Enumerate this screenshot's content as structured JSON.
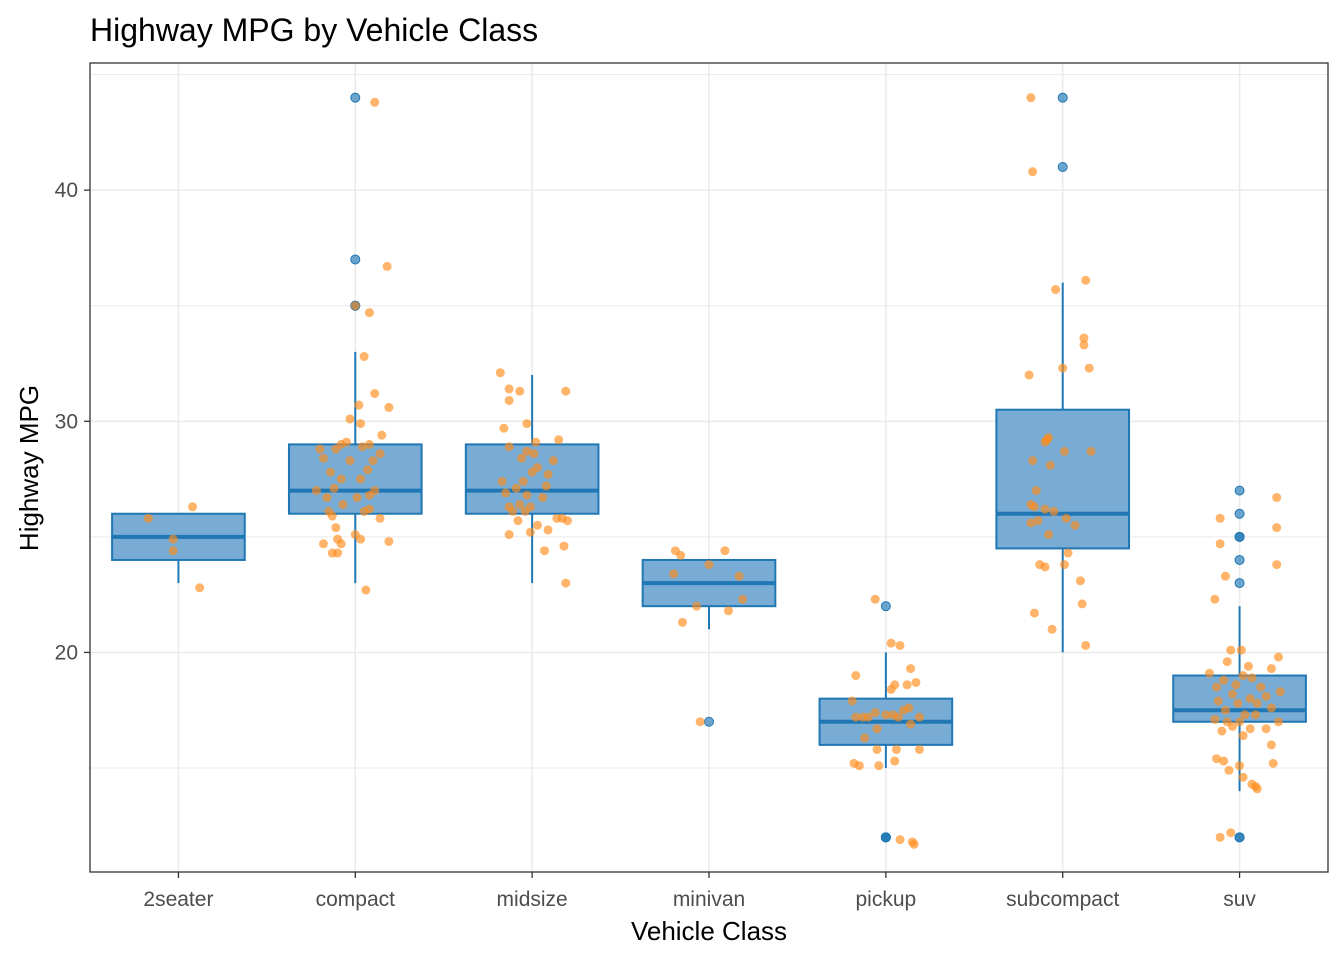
{
  "chart_data": {
    "type": "box",
    "title": "Highway MPG by Vehicle Class",
    "xlabel": "Vehicle Class",
    "ylabel": "Highway MPG",
    "ylim": [
      10.5,
      45.5
    ],
    "yticks": [
      20,
      30,
      40
    ],
    "grid": true,
    "colors": {
      "box_fill": "#78acd5",
      "box_line": "#1f77b4",
      "outlier": "#1f77b4",
      "jitter": "#ff8c1a",
      "grid": "#ebebeb"
    },
    "categories": [
      "2seater",
      "compact",
      "midsize",
      "minivan",
      "pickup",
      "subcompact",
      "suv"
    ],
    "boxes": [
      {
        "label": "2seater",
        "min": 23,
        "q1": 24,
        "median": 25,
        "q3": 26,
        "max": 26,
        "outliers": []
      },
      {
        "label": "compact",
        "min": 23,
        "q1": 26,
        "median": 27,
        "q3": 29,
        "max": 33,
        "outliers": [
          35,
          37,
          35,
          44
        ]
      },
      {
        "label": "midsize",
        "min": 23,
        "q1": 26,
        "median": 27,
        "q3": 29,
        "max": 32,
        "outliers": []
      },
      {
        "label": "minivan",
        "min": 21,
        "q1": 22,
        "median": 23,
        "q3": 24,
        "max": 24,
        "outliers": [
          17
        ]
      },
      {
        "label": "pickup",
        "min": 15,
        "q1": 16,
        "median": 17,
        "q3": 18,
        "max": 20,
        "outliers": [
          12,
          12,
          12,
          22
        ]
      },
      {
        "label": "subcompact",
        "min": 20,
        "q1": 24.5,
        "median": 26,
        "q3": 30.5,
        "max": 36,
        "outliers": [
          44,
          41
        ]
      },
      {
        "label": "suv",
        "min": 14,
        "q1": 17,
        "median": 17.5,
        "q3": 19,
        "max": 22,
        "outliers": [
          12,
          12,
          27,
          25,
          25,
          26,
          24,
          23
        ]
      }
    ],
    "jitter": [
      {
        "label": "2seater",
        "points": [
          [
            -0.17,
            25.8
          ],
          [
            0.08,
            26.3
          ],
          [
            -0.03,
            24.9
          ],
          [
            -0.03,
            24.4
          ],
          [
            0.12,
            22.8
          ]
        ]
      },
      {
        "label": "compact",
        "points": [
          [
            0.11,
            43.8
          ],
          [
            0.0,
            35.0
          ],
          [
            0.08,
            34.7
          ],
          [
            0.18,
            36.7
          ],
          [
            0.05,
            32.8
          ],
          [
            0.19,
            30.6
          ],
          [
            0.11,
            31.2
          ],
          [
            0.02,
            30.7
          ],
          [
            -0.03,
            30.1
          ],
          [
            0.03,
            29.9
          ],
          [
            0.15,
            29.4
          ],
          [
            -0.05,
            29.1
          ],
          [
            0.08,
            29.0
          ],
          [
            -0.2,
            28.8
          ],
          [
            -0.11,
            28.8
          ],
          [
            -0.08,
            29.0
          ],
          [
            0.04,
            28.9
          ],
          [
            0.14,
            28.6
          ],
          [
            -0.18,
            28.4
          ],
          [
            0.1,
            28.3
          ],
          [
            -0.03,
            28.3
          ],
          [
            0.07,
            27.9
          ],
          [
            -0.14,
            27.8
          ],
          [
            -0.08,
            27.5
          ],
          [
            0.03,
            27.5
          ],
          [
            -0.12,
            27.1
          ],
          [
            0.11,
            27.0
          ],
          [
            -0.22,
            27.0
          ],
          [
            0.08,
            26.8
          ],
          [
            -0.16,
            26.7
          ],
          [
            0.01,
            26.7
          ],
          [
            -0.07,
            26.4
          ],
          [
            0.08,
            26.2
          ],
          [
            -0.15,
            26.1
          ],
          [
            0.05,
            26.1
          ],
          [
            -0.13,
            25.9
          ],
          [
            0.14,
            25.8
          ],
          [
            -0.11,
            25.4
          ],
          [
            0.0,
            25.1
          ],
          [
            -0.1,
            24.9
          ],
          [
            0.03,
            24.9
          ],
          [
            0.19,
            24.8
          ],
          [
            -0.18,
            24.7
          ],
          [
            -0.08,
            24.7
          ],
          [
            -0.13,
            24.3
          ],
          [
            -0.1,
            24.3
          ],
          [
            0.06,
            22.7
          ]
        ]
      },
      {
        "label": "midsize",
        "points": [
          [
            -0.18,
            32.1
          ],
          [
            -0.13,
            31.4
          ],
          [
            -0.07,
            31.3
          ],
          [
            -0.13,
            30.9
          ],
          [
            0.19,
            31.3
          ],
          [
            -0.03,
            29.9
          ],
          [
            -0.16,
            29.7
          ],
          [
            0.15,
            29.2
          ],
          [
            0.02,
            29.1
          ],
          [
            -0.13,
            28.9
          ],
          [
            -0.03,
            28.7
          ],
          [
            0.01,
            28.6
          ],
          [
            -0.06,
            28.4
          ],
          [
            0.12,
            28.3
          ],
          [
            0.03,
            28.0
          ],
          [
            0.09,
            27.7
          ],
          [
            0.0,
            27.8
          ],
          [
            -0.17,
            27.4
          ],
          [
            -0.05,
            27.4
          ],
          [
            0.08,
            27.2
          ],
          [
            -0.09,
            27.1
          ],
          [
            -0.15,
            26.9
          ],
          [
            -0.03,
            26.8
          ],
          [
            0.06,
            26.7
          ],
          [
            -0.07,
            26.4
          ],
          [
            -0.13,
            26.3
          ],
          [
            -0.01,
            26.3
          ],
          [
            -0.11,
            26.1
          ],
          [
            -0.04,
            26.1
          ],
          [
            0.14,
            25.8
          ],
          [
            -0.08,
            25.7
          ],
          [
            0.17,
            25.8
          ],
          [
            0.2,
            25.7
          ],
          [
            0.03,
            25.5
          ],
          [
            -0.01,
            25.2
          ],
          [
            0.09,
            25.3
          ],
          [
            -0.13,
            25.1
          ],
          [
            0.18,
            24.6
          ],
          [
            0.07,
            24.4
          ],
          [
            0.19,
            23.0
          ]
        ]
      },
      {
        "label": "minivan",
        "points": [
          [
            -0.19,
            24.4
          ],
          [
            -0.16,
            24.2
          ],
          [
            0.09,
            24.4
          ],
          [
            -0.2,
            23.4
          ],
          [
            0.0,
            23.8
          ],
          [
            0.17,
            23.3
          ],
          [
            0.19,
            22.3
          ],
          [
            -0.07,
            22.0
          ],
          [
            0.11,
            21.8
          ],
          [
            -0.15,
            21.3
          ],
          [
            -0.05,
            17.0
          ]
        ]
      },
      {
        "label": "pickup",
        "points": [
          [
            -0.06,
            22.3
          ],
          [
            0.03,
            20.4
          ],
          [
            0.08,
            20.3
          ],
          [
            -0.17,
            19.0
          ],
          [
            0.14,
            19.3
          ],
          [
            0.05,
            18.6
          ],
          [
            0.12,
            18.6
          ],
          [
            0.17,
            18.7
          ],
          [
            0.03,
            18.4
          ],
          [
            -0.19,
            17.9
          ],
          [
            0.13,
            17.6
          ],
          [
            0.1,
            17.5
          ],
          [
            -0.06,
            17.4
          ],
          [
            -0.1,
            17.2
          ],
          [
            0.0,
            17.3
          ],
          [
            0.04,
            17.3
          ],
          [
            -0.17,
            17.2
          ],
          [
            -0.13,
            17.2
          ],
          [
            0.07,
            17.2
          ],
          [
            0.19,
            17.2
          ],
          [
            0.14,
            16.9
          ],
          [
            -0.05,
            16.7
          ],
          [
            -0.12,
            16.3
          ],
          [
            0.19,
            15.8
          ],
          [
            -0.05,
            15.8
          ],
          [
            0.06,
            15.8
          ],
          [
            0.05,
            15.3
          ],
          [
            -0.18,
            15.2
          ],
          [
            -0.04,
            15.1
          ],
          [
            -0.15,
            15.1
          ],
          [
            0.08,
            11.9
          ],
          [
            0.15,
            11.8
          ],
          [
            0.16,
            11.7
          ]
        ]
      },
      {
        "label": "subcompact",
        "points": [
          [
            -0.18,
            44.0
          ],
          [
            -0.17,
            40.8
          ],
          [
            0.13,
            36.1
          ],
          [
            -0.04,
            35.7
          ],
          [
            0.12,
            33.6
          ],
          [
            0.12,
            33.3
          ],
          [
            0.0,
            32.3
          ],
          [
            0.15,
            32.3
          ],
          [
            -0.19,
            32.0
          ],
          [
            -0.08,
            29.3
          ],
          [
            -0.09,
            29.2
          ],
          [
            -0.1,
            29.1
          ],
          [
            0.01,
            28.7
          ],
          [
            0.16,
            28.7
          ],
          [
            -0.17,
            28.3
          ],
          [
            -0.07,
            28.1
          ],
          [
            -0.15,
            27.0
          ],
          [
            -0.18,
            26.4
          ],
          [
            -0.16,
            26.3
          ],
          [
            -0.1,
            26.2
          ],
          [
            -0.05,
            26.1
          ],
          [
            0.02,
            25.8
          ],
          [
            -0.14,
            25.7
          ],
          [
            -0.18,
            25.6
          ],
          [
            0.07,
            25.5
          ],
          [
            -0.08,
            25.1
          ],
          [
            0.03,
            24.3
          ],
          [
            0.01,
            23.8
          ],
          [
            -0.13,
            23.8
          ],
          [
            -0.1,
            23.7
          ],
          [
            0.1,
            23.1
          ],
          [
            0.11,
            22.1
          ],
          [
            -0.16,
            21.7
          ],
          [
            -0.06,
            21.0
          ],
          [
            0.13,
            20.3
          ]
        ]
      },
      {
        "label": "suv",
        "points": [
          [
            0.21,
            26.7
          ],
          [
            -0.11,
            25.8
          ],
          [
            0.21,
            25.4
          ],
          [
            -0.11,
            24.7
          ],
          [
            0.21,
            23.8
          ],
          [
            -0.08,
            23.3
          ],
          [
            -0.14,
            22.3
          ],
          [
            0.22,
            19.8
          ],
          [
            -0.05,
            20.1
          ],
          [
            0.01,
            20.1
          ],
          [
            -0.07,
            19.6
          ],
          [
            0.05,
            19.4
          ],
          [
            -0.17,
            19.1
          ],
          [
            0.18,
            19.3
          ],
          [
            0.02,
            19.0
          ],
          [
            -0.09,
            18.8
          ],
          [
            0.07,
            18.9
          ],
          [
            -0.02,
            18.6
          ],
          [
            -0.13,
            18.5
          ],
          [
            0.12,
            18.5
          ],
          [
            0.23,
            18.3
          ],
          [
            -0.04,
            18.2
          ],
          [
            0.15,
            18.1
          ],
          [
            0.06,
            18.0
          ],
          [
            -0.12,
            17.9
          ],
          [
            -0.01,
            17.8
          ],
          [
            0.1,
            17.8
          ],
          [
            0.18,
            17.6
          ],
          [
            -0.08,
            17.5
          ],
          [
            0.03,
            17.3
          ],
          [
            0.09,
            17.3
          ],
          [
            -0.14,
            17.1
          ],
          [
            -0.07,
            17.0
          ],
          [
            0.0,
            17.0
          ],
          [
            0.22,
            17.0
          ],
          [
            -0.04,
            16.8
          ],
          [
            0.06,
            16.7
          ],
          [
            0.15,
            16.7
          ],
          [
            -0.1,
            16.6
          ],
          [
            0.02,
            16.4
          ],
          [
            0.18,
            16.0
          ],
          [
            -0.13,
            15.4
          ],
          [
            -0.09,
            15.3
          ],
          [
            0.0,
            15.1
          ],
          [
            -0.06,
            14.9
          ],
          [
            0.02,
            14.6
          ],
          [
            0.07,
            14.3
          ],
          [
            0.09,
            14.2
          ],
          [
            0.1,
            14.1
          ],
          [
            0.19,
            15.2
          ],
          [
            -0.11,
            12.0
          ],
          [
            -0.05,
            12.2
          ]
        ]
      }
    ]
  }
}
